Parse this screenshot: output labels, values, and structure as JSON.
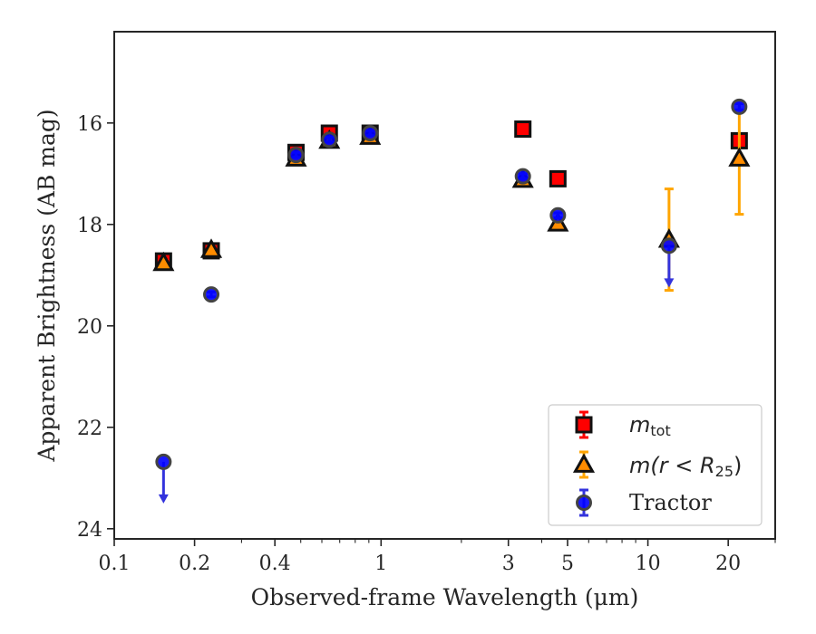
{
  "chart_data": {
    "type": "scatter",
    "xlabel": "Observed-frame Wavelength (μm)",
    "ylabel": "Apparent Brightness (AB mag)",
    "xscale": "log",
    "xlim": [
      0.1,
      30
    ],
    "ylim": [
      24.2,
      14.2
    ],
    "y_inverted": true,
    "x_ticks": [
      0.1,
      0.2,
      0.4,
      1,
      3,
      5,
      10,
      20
    ],
    "x_tick_labels": [
      "0.1",
      "0.2",
      "0.4",
      "1",
      "3",
      "5",
      "10",
      "20"
    ],
    "y_ticks": [
      16,
      18,
      20,
      22,
      24
    ],
    "y_tick_labels": [
      "16",
      "18",
      "20",
      "22",
      "24"
    ],
    "grid": false,
    "legend_position": "lower-right",
    "series": [
      {
        "name": "m_tot",
        "legend_label": "m",
        "legend_subscript": "tot",
        "marker": "square",
        "color": "#ff0000",
        "errcolor": "#ff0000",
        "points": [
          {
            "x": 0.153,
            "y": 18.72,
            "err": 0.08
          },
          {
            "x": 0.231,
            "y": 18.52,
            "err": 0.05
          },
          {
            "x": 0.48,
            "y": 16.58,
            "err": 0.05
          },
          {
            "x": 0.64,
            "y": 16.2,
            "err": 0.05
          },
          {
            "x": 0.91,
            "y": 16.2,
            "err": 0.05
          },
          {
            "x": 3.4,
            "y": 16.12,
            "err": 0.05
          },
          {
            "x": 4.6,
            "y": 17.1,
            "err": 0.05
          },
          {
            "x": 22.0,
            "y": 16.35,
            "err": 0.06
          }
        ]
      },
      {
        "name": "m(r < R_25)",
        "legend_label": "m(r < R",
        "legend_subscript": "25",
        "legend_suffix": ")",
        "marker": "triangle",
        "color": "#ff8c00",
        "errcolor": "#ffa500",
        "points": [
          {
            "x": 0.153,
            "y": 18.76,
            "err": 0.05
          },
          {
            "x": 0.231,
            "y": 18.5,
            "err": 0.05
          },
          {
            "x": 0.48,
            "y": 16.7,
            "err": 0.05
          },
          {
            "x": 0.64,
            "y": 16.35,
            "err": 0.05
          },
          {
            "x": 0.91,
            "y": 16.27,
            "err": 0.05
          },
          {
            "x": 3.4,
            "y": 17.12,
            "err": 0.05
          },
          {
            "x": 4.6,
            "y": 17.98,
            "err": 0.05
          },
          {
            "x": 12.0,
            "y": 18.3,
            "err": 1.0
          },
          {
            "x": 22.0,
            "y": 16.7,
            "err": 1.1
          }
        ]
      },
      {
        "name": "Tractor",
        "legend_label": "Tractor",
        "marker": "circle",
        "color": "#0000ff",
        "errcolor": "#3333dd",
        "points": [
          {
            "x": 0.153,
            "y": 22.68,
            "upper_limit": true
          },
          {
            "x": 0.231,
            "y": 19.38,
            "err": 0.05
          },
          {
            "x": 0.48,
            "y": 16.63,
            "err": 0.05
          },
          {
            "x": 0.64,
            "y": 16.33,
            "err": 0.05
          },
          {
            "x": 0.91,
            "y": 16.2,
            "err": 0.05
          },
          {
            "x": 3.4,
            "y": 17.05,
            "err": 0.05
          },
          {
            "x": 4.6,
            "y": 17.82,
            "err": 0.05
          },
          {
            "x": 12.0,
            "y": 18.42,
            "upper_limit": true
          },
          {
            "x": 22.0,
            "y": 15.68,
            "err": 0.06
          }
        ]
      }
    ]
  }
}
